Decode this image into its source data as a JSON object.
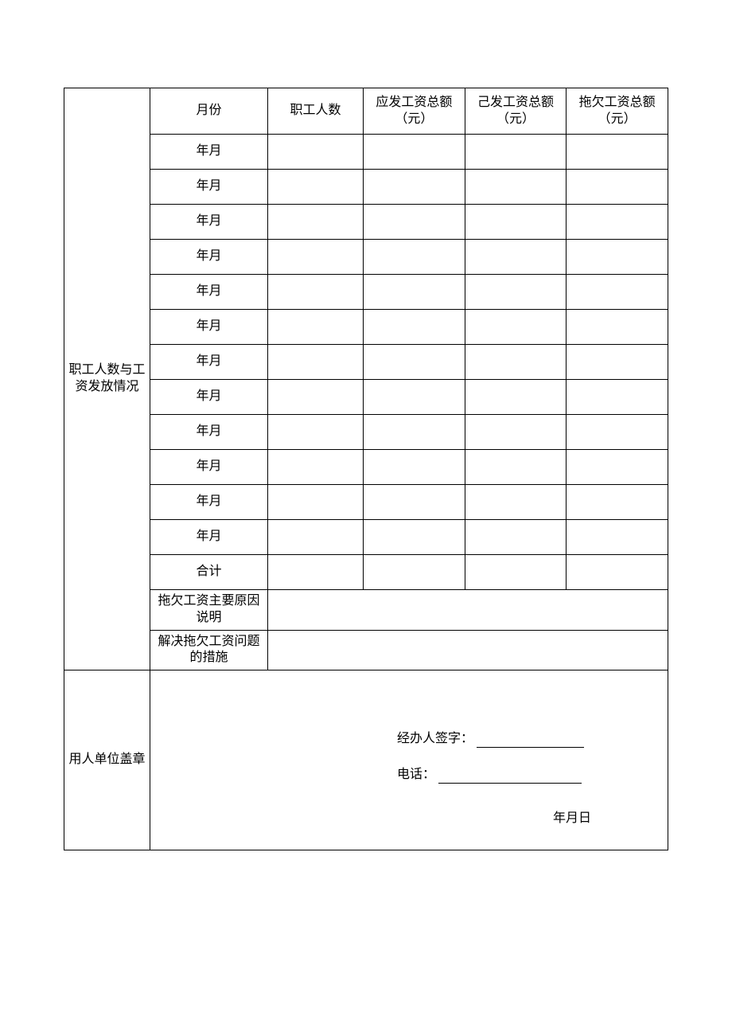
{
  "colors": {
    "border": "#000000",
    "background": "#ffffff",
    "text": "#000000"
  },
  "typography": {
    "font_family": "SimSun",
    "base_fontsize": 16
  },
  "layout": {
    "cell_border_width": 1,
    "header_row_height": 58,
    "data_row_height": 44,
    "narrow_row_height": 40,
    "stamp_row_height": 226,
    "column_widths": {
      "section": 108,
      "month": 148,
      "employees": 120,
      "payable": 128,
      "paid": 128,
      "arrears": 128
    }
  },
  "section1": {
    "title": "职工人数与工资发放情况",
    "headers": {
      "month": "月份",
      "employees": "职工人数",
      "payable": "应发工资总额（元）",
      "paid": "己发工资总额（元）",
      "arrears": "拖欠工资总额（元）"
    },
    "rows": [
      {
        "month": "年月",
        "employees": "",
        "payable": "",
        "paid": "",
        "arrears": ""
      },
      {
        "month": "年月",
        "employees": "",
        "payable": "",
        "paid": "",
        "arrears": ""
      },
      {
        "month": "年月",
        "employees": "",
        "payable": "",
        "paid": "",
        "arrears": ""
      },
      {
        "month": "年月",
        "employees": "",
        "payable": "",
        "paid": "",
        "arrears": ""
      },
      {
        "month": "年月",
        "employees": "",
        "payable": "",
        "paid": "",
        "arrears": ""
      },
      {
        "month": "年月",
        "employees": "",
        "payable": "",
        "paid": "",
        "arrears": ""
      },
      {
        "month": "年月",
        "employees": "",
        "payable": "",
        "paid": "",
        "arrears": ""
      },
      {
        "month": "年月",
        "employees": "",
        "payable": "",
        "paid": "",
        "arrears": ""
      },
      {
        "month": "年月",
        "employees": "",
        "payable": "",
        "paid": "",
        "arrears": ""
      },
      {
        "month": "年月",
        "employees": "",
        "payable": "",
        "paid": "",
        "arrears": ""
      },
      {
        "month": "年月",
        "employees": "",
        "payable": "",
        "paid": "",
        "arrears": ""
      },
      {
        "month": "年月",
        "employees": "",
        "payable": "",
        "paid": "",
        "arrears": ""
      }
    ],
    "total": {
      "label": "合计",
      "employees": "",
      "payable": "",
      "paid": "",
      "arrears": ""
    },
    "reason": {
      "label": "拖欠工资主要原因说明",
      "value": ""
    },
    "measures": {
      "label": "解决拖欠工资问题的措施",
      "value": ""
    }
  },
  "section2": {
    "title": "用人单位盖章",
    "signature_label": "经办人签字：",
    "signature_value": "",
    "phone_label": "电话：",
    "phone_value": "",
    "date_label": "年月日"
  }
}
